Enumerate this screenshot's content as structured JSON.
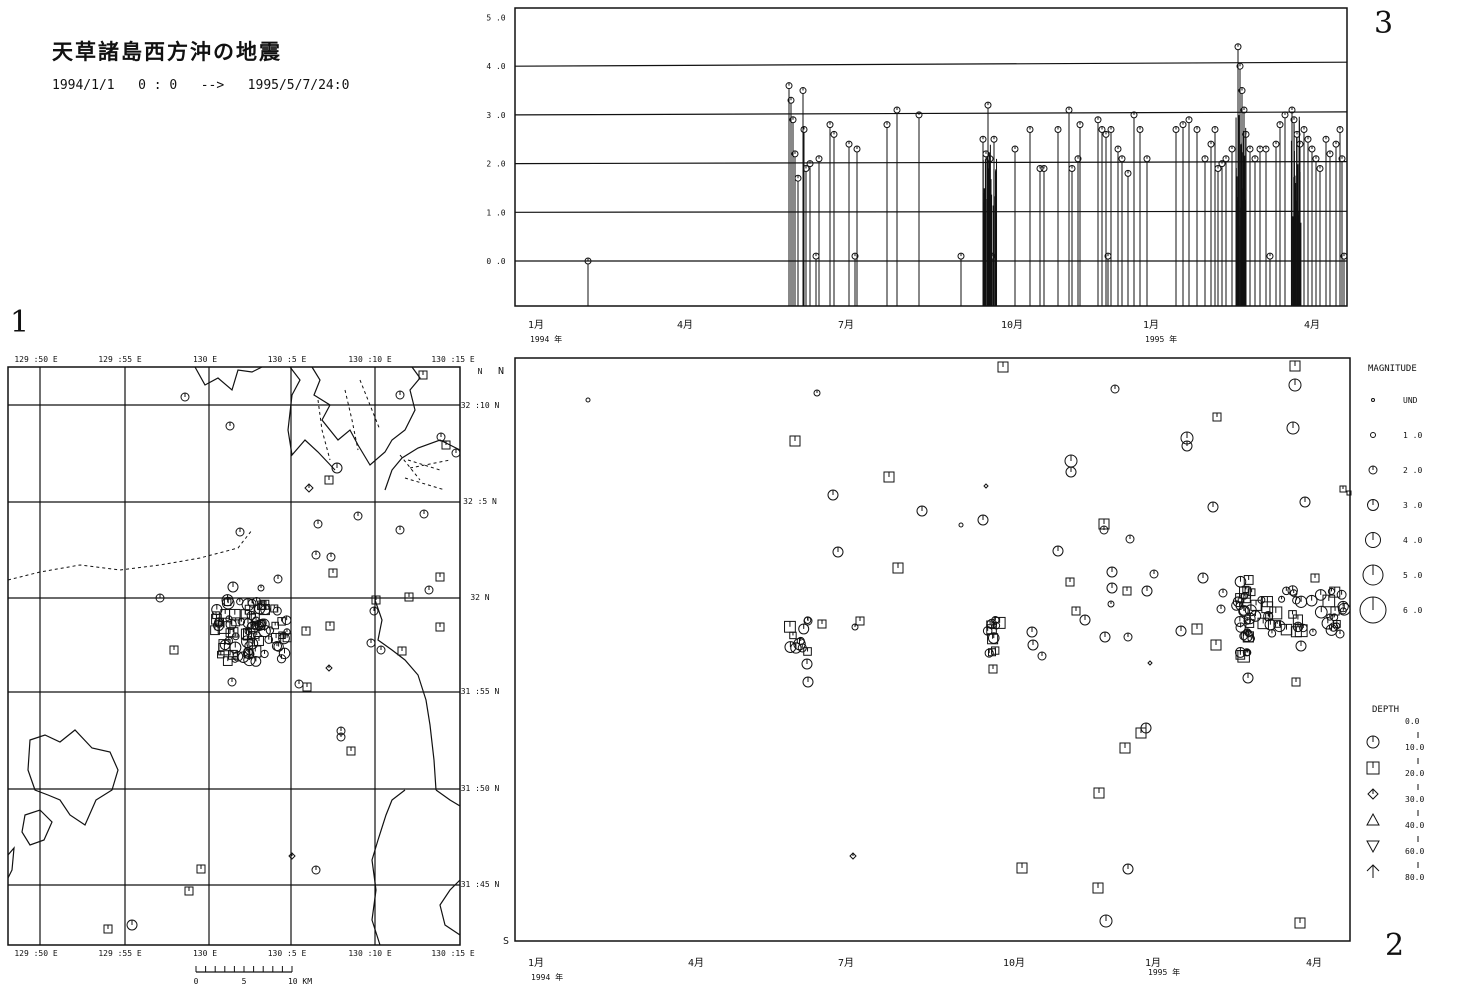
{
  "header": {
    "title": "天草諸島西方沖の地震",
    "date_range": "1994/1/1   0 : 0   -->   1995/5/7/24:0"
  },
  "panel_numbers": {
    "map": "1",
    "timeline": "2",
    "magnitude_time": "3"
  },
  "map_panel": {
    "top_lon_labels": [
      "129 :50 E",
      "129 :55 E",
      "130 E",
      "130 :5 E",
      "130 :10 E",
      "130 :15 E"
    ],
    "bottom_lon_labels": [
      "129 :50 E",
      "129 :55 E",
      "130 E",
      "130 :5 E",
      "130 :10 E",
      "130 :15 E"
    ],
    "lat_labels": [
      "N",
      "32 :10 N",
      "32 :5 N",
      "32 N",
      "31 :55 N",
      "31 :50 N",
      "31 :45 N"
    ],
    "scale_bar": [
      "0",
      "5",
      "10 KM"
    ]
  },
  "magnitude_panel": {
    "y_ticks": [
      "5 .0",
      "4 .0",
      "3 .0",
      "2 .0",
      "1 .0",
      "0 .0"
    ],
    "x_ticks": [
      "1月",
      "4月",
      "7月",
      "10月",
      "1月",
      "4月"
    ],
    "x_year_labels": [
      "1994 年",
      "1995 年"
    ],
    "color": "#111111"
  },
  "timeline_panel": {
    "top_right_label": "N",
    "bottom_left_label": "S",
    "x_ticks": [
      "1月",
      "4月",
      "7月",
      "10月",
      "1月",
      "4月"
    ],
    "x_year_labels": [
      "1994 年",
      "1995 年"
    ]
  },
  "magnitude_legend": {
    "title": "MAGNITUDE",
    "entries": [
      "UND",
      "1 .0",
      "2 .0",
      "3 .0",
      "4 .0",
      "5 .0",
      "6 .0"
    ]
  },
  "depth_legend": {
    "title": "DEPTH",
    "ranges": [
      "0.0",
      "10.0",
      "20.0",
      "30.0",
      "40.0",
      "60.0",
      "80.0"
    ],
    "symbols": [
      "circle-tick",
      "square-tick",
      "diamond",
      "triangle-up",
      "triangle-down",
      "arrow-up"
    ]
  }
}
